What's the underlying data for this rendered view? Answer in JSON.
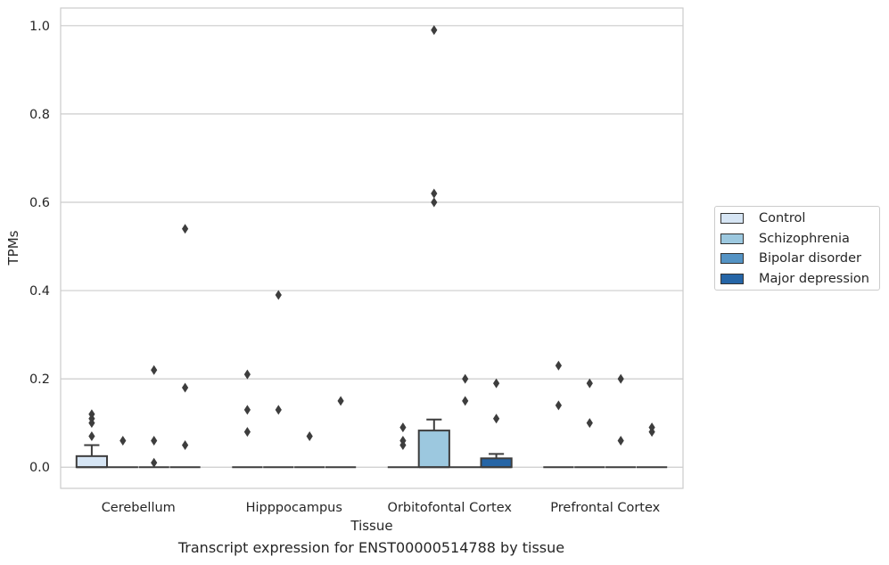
{
  "caption": "Transcript expression for ENST00000514788 by tissue",
  "colors": {
    "box_stroke": "#3d3d3d",
    "grid": "#cccccc",
    "outlier": "#3d3d3d"
  },
  "chart_data": {
    "type": "box",
    "xlabel": "Tissue",
    "ylabel": "TPMs",
    "ylim": [
      -0.048,
      1.04
    ],
    "yticks": [
      "0.0",
      "0.2",
      "0.4",
      "0.6",
      "0.8",
      "1.0"
    ],
    "grid": true,
    "legend_position": "right",
    "categories": [
      "Cerebellum",
      "Hipppocampus",
      "Orbitofontal Cortex",
      "Prefrontal Cortex"
    ],
    "series": [
      {
        "name": "Control",
        "color": "#d6e5f4",
        "boxes": [
          {
            "q1": 0,
            "median": 0,
            "q3": 0.025,
            "whisker_low": 0,
            "whisker_high": 0.05,
            "outliers": [
              0.12,
              0.11,
              0.1,
              0.07
            ]
          },
          {
            "q1": 0,
            "median": 0,
            "q3": 0,
            "whisker_low": 0,
            "whisker_high": 0,
            "outliers": [
              0.21,
              0.13,
              0.08
            ]
          },
          {
            "q1": 0,
            "median": 0,
            "q3": 0,
            "whisker_low": 0,
            "whisker_high": 0,
            "outliers": [
              0.09,
              0.06,
              0.05
            ]
          },
          {
            "q1": 0,
            "median": 0,
            "q3": 0,
            "whisker_low": 0,
            "whisker_high": 0,
            "outliers": [
              0.23,
              0.14
            ]
          }
        ]
      },
      {
        "name": "Schizophrenia",
        "color": "#9cc8df",
        "boxes": [
          {
            "q1": 0,
            "median": 0,
            "q3": 0,
            "whisker_low": 0,
            "whisker_high": 0,
            "outliers": [
              0.06
            ]
          },
          {
            "q1": 0,
            "median": 0,
            "q3": 0,
            "whisker_low": 0,
            "whisker_high": 0,
            "outliers": [
              0.39,
              0.13
            ]
          },
          {
            "q1": 0,
            "median": 0,
            "q3": 0.083,
            "whisker_low": 0,
            "whisker_high": 0.108,
            "outliers": [
              0.99,
              0.62,
              0.6
            ]
          },
          {
            "q1": 0,
            "median": 0,
            "q3": 0,
            "whisker_low": 0,
            "whisker_high": 0,
            "outliers": [
              0.19,
              0.1
            ]
          }
        ]
      },
      {
        "name": "Bipolar disorder",
        "color": "#5493c4",
        "boxes": [
          {
            "q1": 0,
            "median": 0,
            "q3": 0,
            "whisker_low": 0,
            "whisker_high": 0,
            "outliers": [
              0.22,
              0.06,
              0.01
            ]
          },
          {
            "q1": 0,
            "median": 0,
            "q3": 0,
            "whisker_low": 0,
            "whisker_high": 0,
            "outliers": [
              0.07
            ]
          },
          {
            "q1": 0,
            "median": 0,
            "q3": 0,
            "whisker_low": 0,
            "whisker_high": 0,
            "outliers": [
              0.2,
              0.15
            ]
          },
          {
            "q1": 0,
            "median": 0,
            "q3": 0,
            "whisker_low": 0,
            "whisker_high": 0,
            "outliers": [
              0.2,
              0.06
            ]
          }
        ]
      },
      {
        "name": "Major depression",
        "color": "#2565a6",
        "boxes": [
          {
            "q1": 0,
            "median": 0,
            "q3": 0,
            "whisker_low": 0,
            "whisker_high": 0,
            "outliers": [
              0.54,
              0.18,
              0.05
            ]
          },
          {
            "q1": 0,
            "median": 0,
            "q3": 0,
            "whisker_low": 0,
            "whisker_high": 0,
            "outliers": [
              0.15
            ]
          },
          {
            "q1": 0,
            "median": 0,
            "q3": 0.02,
            "whisker_low": 0,
            "whisker_high": 0.03,
            "outliers": [
              0.19,
              0.11
            ]
          },
          {
            "q1": 0,
            "median": 0,
            "q3": 0,
            "whisker_low": 0,
            "whisker_high": 0,
            "outliers": [
              0.09,
              0.08
            ]
          }
        ]
      }
    ]
  }
}
